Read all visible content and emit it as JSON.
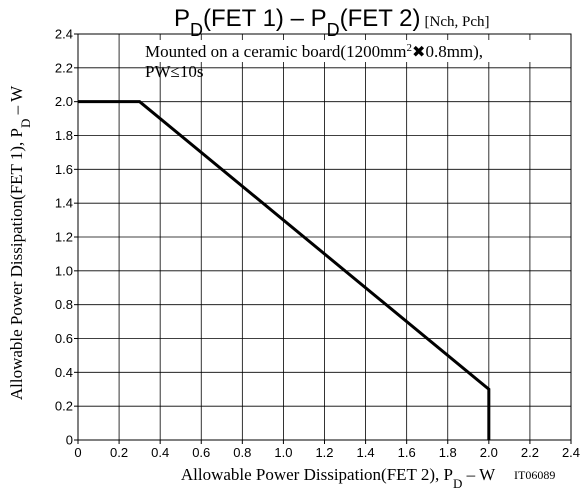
{
  "chart_data": {
    "type": "line",
    "title": {
      "p1": "P",
      "s1": "D",
      "mid": "(FET 1)  –  P",
      "s2": "D",
      "end": "(FET 2)",
      "suffix": "[Nch, Pch]"
    },
    "annotation": {
      "line1_a": "Mounted on a ceramic board(1200mm",
      "line1_sup": "2",
      "line1_x": "✖",
      "line1_b": "0.8mm),",
      "line2": "PW≤10s"
    },
    "xlabel": {
      "main": "Allowable Power Dissipation(FET 2), P",
      "sub": "D",
      "unit": "  –  W"
    },
    "ylabel": {
      "main": "Allowable Power Dissipation(FET 1), P",
      "sub": "D",
      "unit": "  –  W"
    },
    "code": "IT06089",
    "xlim": [
      0,
      2.4
    ],
    "ylim": [
      0,
      2.4
    ],
    "xticks": [
      "0",
      "0.2",
      "0.4",
      "0.6",
      "0.8",
      "1.0",
      "1.2",
      "1.4",
      "1.6",
      "1.8",
      "2.0",
      "2.2",
      "2.4"
    ],
    "yticks": [
      "0",
      "0.2",
      "0.4",
      "0.6",
      "0.8",
      "1.0",
      "1.2",
      "1.4",
      "1.6",
      "1.8",
      "2.0",
      "2.2",
      "2.4"
    ],
    "grid": true,
    "series": [
      {
        "x": [
          0,
          0.3,
          2.0,
          2.0
        ],
        "y": [
          2.0,
          2.0,
          0.3,
          0
        ]
      }
    ]
  }
}
